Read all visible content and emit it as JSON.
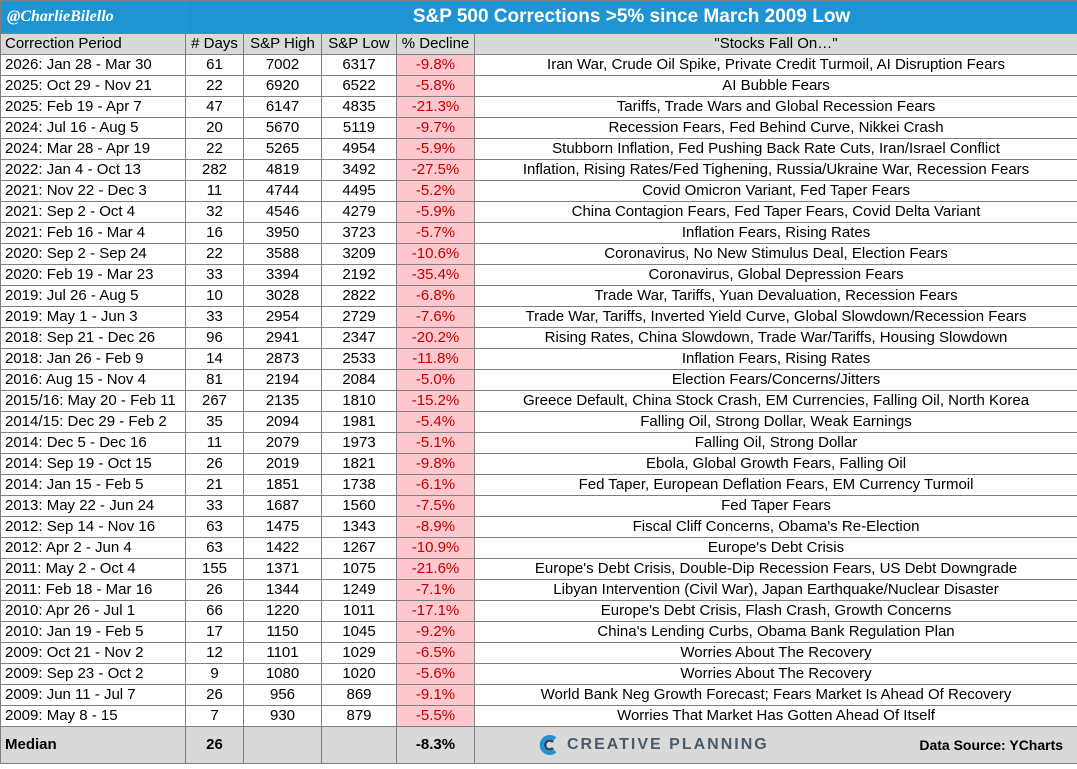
{
  "header": {
    "handle": "@CharlieBilello",
    "title": "S&P 500 Corrections >5% since March 2009 Low"
  },
  "columns": [
    "Correction Period",
    "# Days",
    "S&P High",
    "S&P Low",
    "% Decline",
    "\"Stocks Fall On…\""
  ],
  "footer": {
    "label": "Median",
    "days": "26",
    "decline": "-8.3%",
    "brand": "CREATIVE PLANNING",
    "source": "Data Source: YCharts"
  },
  "colors": {
    "title_bg": "#1f94d2",
    "header_bg": "#d9d9d9",
    "decline_bg": "#ffc7ce",
    "decline_text": "#c00000"
  },
  "chart_data": {
    "type": "table",
    "title": "S&P 500 Corrections >5% since March 2009 Low",
    "columns": [
      "Correction Period",
      "# Days",
      "S&P High",
      "S&P Low",
      "% Decline",
      "\"Stocks Fall On…\""
    ],
    "rows": [
      [
        "2026: Jan 28 - Mar 30",
        "61",
        "7002",
        "6317",
        "-9.8%",
        "Iran War, Crude Oil Spike, Private Credit Turmoil, AI Disruption Fears"
      ],
      [
        "2025: Oct 29 - Nov 21",
        "22",
        "6920",
        "6522",
        "-5.8%",
        "AI Bubble Fears"
      ],
      [
        "2025: Feb 19 - Apr 7",
        "47",
        "6147",
        "4835",
        "-21.3%",
        "Tariffs, Trade Wars and Global Recession Fears"
      ],
      [
        "2024: Jul 16 - Aug 5",
        "20",
        "5670",
        "5119",
        "-9.7%",
        "Recession Fears, Fed Behind Curve, Nikkei Crash"
      ],
      [
        "2024: Mar 28 - Apr 19",
        "22",
        "5265",
        "4954",
        "-5.9%",
        "Stubborn Inflation, Fed Pushing Back Rate Cuts, Iran/Israel Conflict"
      ],
      [
        "2022: Jan 4 - Oct 13",
        "282",
        "4819",
        "3492",
        "-27.5%",
        "Inflation, Rising Rates/Fed Tighening, Russia/Ukraine War, Recession Fears"
      ],
      [
        "2021: Nov 22 - Dec 3",
        "11",
        "4744",
        "4495",
        "-5.2%",
        "Covid Omicron Variant, Fed Taper Fears"
      ],
      [
        "2021: Sep 2 - Oct 4",
        "32",
        "4546",
        "4279",
        "-5.9%",
        "China Contagion Fears, Fed Taper Fears, Covid Delta Variant"
      ],
      [
        "2021: Feb 16 - Mar 4",
        "16",
        "3950",
        "3723",
        "-5.7%",
        "Inflation Fears, Rising Rates"
      ],
      [
        "2020: Sep 2 - Sep 24",
        "22",
        "3588",
        "3209",
        "-10.6%",
        "Coronavirus, No New Stimulus Deal, Election Fears"
      ],
      [
        "2020: Feb 19 - Mar 23",
        "33",
        "3394",
        "2192",
        "-35.4%",
        "Coronavirus, Global Depression Fears"
      ],
      [
        "2019: Jul 26 - Aug 5",
        "10",
        "3028",
        "2822",
        "-6.8%",
        "Trade War, Tariffs, Yuan Devaluation, Recession Fears"
      ],
      [
        "2019: May 1 - Jun 3",
        "33",
        "2954",
        "2729",
        "-7.6%",
        "Trade War, Tariffs, Inverted Yield Curve, Global Slowdown/Recession Fears"
      ],
      [
        "2018: Sep 21 - Dec 26",
        "96",
        "2941",
        "2347",
        "-20.2%",
        "Rising Rates, China Slowdown, Trade War/Tariffs, Housing Slowdown"
      ],
      [
        "2018: Jan 26 - Feb 9",
        "14",
        "2873",
        "2533",
        "-11.8%",
        "Inflation Fears, Rising Rates"
      ],
      [
        "2016: Aug 15 - Nov 4",
        "81",
        "2194",
        "2084",
        "-5.0%",
        "Election Fears/Concerns/Jitters"
      ],
      [
        "2015/16: May 20 - Feb 11",
        "267",
        "2135",
        "1810",
        "-15.2%",
        "Greece Default, China Stock Crash, EM Currencies, Falling Oil, North Korea"
      ],
      [
        "2014/15: Dec 29 - Feb 2",
        "35",
        "2094",
        "1981",
        "-5.4%",
        "Falling Oil, Strong Dollar, Weak Earnings"
      ],
      [
        "2014: Dec 5 - Dec 16",
        "11",
        "2079",
        "1973",
        "-5.1%",
        "Falling Oil, Strong Dollar"
      ],
      [
        "2014: Sep 19 - Oct 15",
        "26",
        "2019",
        "1821",
        "-9.8%",
        "Ebola, Global Growth Fears, Falling Oil"
      ],
      [
        "2014: Jan 15 - Feb 5",
        "21",
        "1851",
        "1738",
        "-6.1%",
        "Fed Taper, European Deflation Fears, EM Currency Turmoil"
      ],
      [
        "2013: May 22 - Jun 24",
        "33",
        "1687",
        "1560",
        "-7.5%",
        "Fed Taper Fears"
      ],
      [
        "2012: Sep 14 - Nov 16",
        "63",
        "1475",
        "1343",
        "-8.9%",
        "Fiscal Cliff Concerns, Obama's Re-Election"
      ],
      [
        "2012: Apr 2 - Jun 4",
        "63",
        "1422",
        "1267",
        "-10.9%",
        "Europe's Debt Crisis"
      ],
      [
        "2011: May 2 - Oct 4",
        "155",
        "1371",
        "1075",
        "-21.6%",
        "Europe's Debt Crisis, Double-Dip Recession Fears, US Debt Downgrade"
      ],
      [
        "2011: Feb 18 - Mar 16",
        "26",
        "1344",
        "1249",
        "-7.1%",
        "Libyan Intervention (Civil War), Japan Earthquake/Nuclear Disaster"
      ],
      [
        "2010: Apr 26 - Jul 1",
        "66",
        "1220",
        "1011",
        "-17.1%",
        "Europe's Debt Crisis, Flash Crash, Growth Concerns"
      ],
      [
        "2010: Jan 19 - Feb 5",
        "17",
        "1150",
        "1045",
        "-9.2%",
        "China's Lending Curbs, Obama Bank Regulation Plan"
      ],
      [
        "2009: Oct 21 - Nov 2",
        "12",
        "1101",
        "1029",
        "-6.5%",
        "Worries About The Recovery"
      ],
      [
        "2009: Sep 23 - Oct 2",
        "9",
        "1080",
        "1020",
        "-5.6%",
        "Worries About The Recovery"
      ],
      [
        "2009: Jun 11 - Jul 7",
        "26",
        "956",
        "869",
        "-9.1%",
        "World Bank Neg Growth Forecast; Fears Market Is Ahead Of Recovery"
      ],
      [
        "2009: May 8 - 15",
        "7",
        "930",
        "879",
        "-5.5%",
        "Worries That Market Has Gotten Ahead Of Itself"
      ]
    ]
  }
}
